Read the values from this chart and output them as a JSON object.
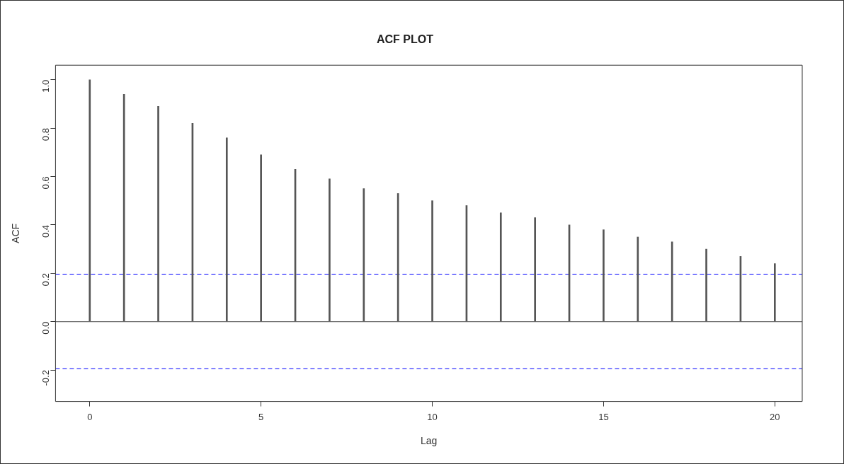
{
  "chart_data": {
    "type": "bar",
    "title": "ACF PLOT",
    "xlabel": "Lag",
    "ylabel": "ACF",
    "x": [
      0,
      1,
      2,
      3,
      4,
      5,
      6,
      7,
      8,
      9,
      10,
      11,
      12,
      13,
      14,
      15,
      16,
      17,
      18,
      19,
      20
    ],
    "values": [
      1.0,
      0.94,
      0.89,
      0.82,
      0.76,
      0.69,
      0.63,
      0.59,
      0.55,
      0.53,
      0.5,
      0.48,
      0.45,
      0.43,
      0.4,
      0.38,
      0.35,
      0.33,
      0.3,
      0.27,
      0.24
    ],
    "color": "#555555",
    "xlim": [
      -1.0,
      20.8
    ],
    "xticks": [
      0,
      5,
      10,
      15,
      20
    ],
    "ylim": [
      -0.33,
      1.06
    ],
    "yticks": [
      -0.2,
      {
        "value": 0,
        "label": "0.0"
      },
      0.2,
      0.4,
      0.6,
      0.8,
      {
        "value": 1,
        "label": "1.0"
      }
    ],
    "ref_lines": [
      {
        "axis": "y",
        "value": 0,
        "color": "#444444",
        "line_style": "solid"
      },
      {
        "axis": "y",
        "value": 0.195,
        "color": "#3333ff",
        "line_style": "dashed"
      },
      {
        "axis": "y",
        "value": -0.195,
        "color": "#3333ff",
        "line_style": "dashed"
      }
    ]
  }
}
